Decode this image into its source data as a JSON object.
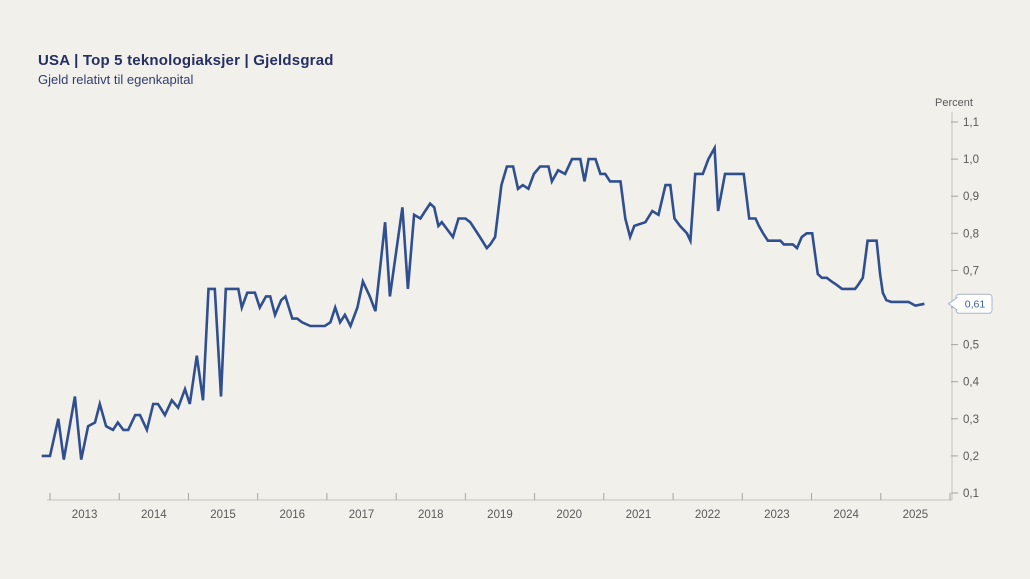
{
  "chart_data": {
    "type": "line",
    "title": "USA | Top 5 teknologiaksjer | Gjeldsgrad",
    "subtitle": "Gjeld relativt til egenkapital",
    "unit_label": "Percent",
    "xlabel": "",
    "ylabel": "Percent",
    "ylim": [
      0.1,
      1.1
    ],
    "xlim": [
      2012.85,
      2026.0
    ],
    "grid": false,
    "legend": "none",
    "y_axis_side": "right",
    "decimal_style": "comma",
    "y_ticks": [
      {
        "value": 1.1,
        "label": "1,1"
      },
      {
        "value": 1.0,
        "label": "1,0"
      },
      {
        "value": 0.9,
        "label": "0,9"
      },
      {
        "value": 0.8,
        "label": "0,8"
      },
      {
        "value": 0.7,
        "label": "0,7"
      },
      {
        "value": 0.6,
        "label": ""
      },
      {
        "value": 0.5,
        "label": "0,5"
      },
      {
        "value": 0.4,
        "label": "0,4"
      },
      {
        "value": 0.3,
        "label": "0,3"
      },
      {
        "value": 0.2,
        "label": "0,2"
      },
      {
        "value": 0.1,
        "label": "0,1"
      }
    ],
    "x_tick_labels": [
      "2013",
      "2014",
      "2015",
      "2016",
      "2017",
      "2018",
      "2019",
      "2020",
      "2021",
      "2022",
      "2023",
      "2024",
      "2025"
    ],
    "last_value": 0.61,
    "last_value_label": "0,61",
    "colors": {
      "line": "#2f4f8f",
      "background": "#f2f0eb",
      "axis": "#c6c2ba",
      "tick": "#a8a49c",
      "tick_text": "#595959",
      "callout_border": "#a9b4cc",
      "callout_text": "#3760a8",
      "callout_bg": "#ffffff"
    },
    "series": [
      {
        "name": "Gjeldsgrad",
        "color": "#2f4f8f",
        "points": [
          [
            2012.88,
            0.2
          ],
          [
            2013.0,
            0.2
          ],
          [
            2013.12,
            0.3
          ],
          [
            2013.2,
            0.19
          ],
          [
            2013.36,
            0.36
          ],
          [
            2013.45,
            0.19
          ],
          [
            2013.55,
            0.28
          ],
          [
            2013.65,
            0.29
          ],
          [
            2013.72,
            0.34
          ],
          [
            2013.81,
            0.28
          ],
          [
            2013.91,
            0.27
          ],
          [
            2013.98,
            0.29
          ],
          [
            2014.06,
            0.27
          ],
          [
            2014.13,
            0.27
          ],
          [
            2014.23,
            0.31
          ],
          [
            2014.3,
            0.31
          ],
          [
            2014.4,
            0.27
          ],
          [
            2014.49,
            0.34
          ],
          [
            2014.56,
            0.34
          ],
          [
            2014.66,
            0.31
          ],
          [
            2014.76,
            0.35
          ],
          [
            2014.85,
            0.33
          ],
          [
            2014.95,
            0.38
          ],
          [
            2015.02,
            0.34
          ],
          [
            2015.12,
            0.47
          ],
          [
            2015.21,
            0.35
          ],
          [
            2015.29,
            0.65
          ],
          [
            2015.38,
            0.65
          ],
          [
            2015.47,
            0.36
          ],
          [
            2015.54,
            0.65
          ],
          [
            2015.72,
            0.65
          ],
          [
            2015.77,
            0.6
          ],
          [
            2015.85,
            0.64
          ],
          [
            2015.96,
            0.64
          ],
          [
            2016.03,
            0.6
          ],
          [
            2016.12,
            0.63
          ],
          [
            2016.18,
            0.63
          ],
          [
            2016.25,
            0.58
          ],
          [
            2016.34,
            0.62
          ],
          [
            2016.4,
            0.63
          ],
          [
            2016.5,
            0.57
          ],
          [
            2016.57,
            0.57
          ],
          [
            2016.64,
            0.56
          ],
          [
            2016.76,
            0.55
          ],
          [
            2016.87,
            0.55
          ],
          [
            2016.97,
            0.55
          ],
          [
            2017.05,
            0.56
          ],
          [
            2017.12,
            0.6
          ],
          [
            2017.19,
            0.56
          ],
          [
            2017.26,
            0.58
          ],
          [
            2017.34,
            0.55
          ],
          [
            2017.44,
            0.6
          ],
          [
            2017.52,
            0.67
          ],
          [
            2017.62,
            0.63
          ],
          [
            2017.7,
            0.59
          ],
          [
            2017.84,
            0.83
          ],
          [
            2017.91,
            0.63
          ],
          [
            2018.09,
            0.87
          ],
          [
            2018.17,
            0.65
          ],
          [
            2018.26,
            0.85
          ],
          [
            2018.35,
            0.84
          ],
          [
            2018.42,
            0.86
          ],
          [
            2018.49,
            0.88
          ],
          [
            2018.55,
            0.87
          ],
          [
            2018.61,
            0.82
          ],
          [
            2018.66,
            0.83
          ],
          [
            2018.74,
            0.81
          ],
          [
            2018.82,
            0.79
          ],
          [
            2018.9,
            0.84
          ],
          [
            2019.0,
            0.84
          ],
          [
            2019.07,
            0.83
          ],
          [
            2019.14,
            0.81
          ],
          [
            2019.21,
            0.79
          ],
          [
            2019.31,
            0.76
          ],
          [
            2019.36,
            0.77
          ],
          [
            2019.43,
            0.79
          ],
          [
            2019.52,
            0.93
          ],
          [
            2019.6,
            0.98
          ],
          [
            2019.69,
            0.98
          ],
          [
            2019.76,
            0.92
          ],
          [
            2019.83,
            0.93
          ],
          [
            2019.91,
            0.92
          ],
          [
            2019.99,
            0.96
          ],
          [
            2020.08,
            0.98
          ],
          [
            2020.2,
            0.98
          ],
          [
            2020.25,
            0.94
          ],
          [
            2020.34,
            0.97
          ],
          [
            2020.44,
            0.96
          ],
          [
            2020.54,
            1.0
          ],
          [
            2020.66,
            1.0
          ],
          [
            2020.72,
            0.94
          ],
          [
            2020.78,
            1.0
          ],
          [
            2020.88,
            1.0
          ],
          [
            2020.95,
            0.96
          ],
          [
            2021.02,
            0.96
          ],
          [
            2021.09,
            0.94
          ],
          [
            2021.24,
            0.94
          ],
          [
            2021.31,
            0.84
          ],
          [
            2021.38,
            0.79
          ],
          [
            2021.44,
            0.82
          ],
          [
            2021.6,
            0.83
          ],
          [
            2021.7,
            0.86
          ],
          [
            2021.79,
            0.85
          ],
          [
            2021.89,
            0.93
          ],
          [
            2021.96,
            0.93
          ],
          [
            2022.02,
            0.84
          ],
          [
            2022.1,
            0.82
          ],
          [
            2022.2,
            0.8
          ],
          [
            2022.25,
            0.78
          ],
          [
            2022.32,
            0.96
          ],
          [
            2022.43,
            0.96
          ],
          [
            2022.51,
            1.0
          ],
          [
            2022.6,
            1.03
          ],
          [
            2022.65,
            0.86
          ],
          [
            2022.75,
            0.96
          ],
          [
            2023.02,
            0.96
          ],
          [
            2023.1,
            0.84
          ],
          [
            2023.19,
            0.84
          ],
          [
            2023.24,
            0.82
          ],
          [
            2023.3,
            0.8
          ],
          [
            2023.37,
            0.78
          ],
          [
            2023.55,
            0.78
          ],
          [
            2023.6,
            0.77
          ],
          [
            2023.73,
            0.77
          ],
          [
            2023.79,
            0.76
          ],
          [
            2023.86,
            0.79
          ],
          [
            2023.93,
            0.8
          ],
          [
            2024.01,
            0.8
          ],
          [
            2024.09,
            0.69
          ],
          [
            2024.15,
            0.68
          ],
          [
            2024.22,
            0.68
          ],
          [
            2024.29,
            0.67
          ],
          [
            2024.37,
            0.66
          ],
          [
            2024.44,
            0.65
          ],
          [
            2024.51,
            0.65
          ],
          [
            2024.63,
            0.65
          ],
          [
            2024.67,
            0.66
          ],
          [
            2024.74,
            0.68
          ],
          [
            2024.81,
            0.78
          ],
          [
            2024.94,
            0.78
          ],
          [
            2024.99,
            0.69
          ],
          [
            2025.03,
            0.64
          ],
          [
            2025.08,
            0.62
          ],
          [
            2025.15,
            0.615
          ],
          [
            2025.4,
            0.615
          ],
          [
            2025.5,
            0.605
          ],
          [
            2025.63,
            0.61
          ]
        ]
      }
    ]
  }
}
